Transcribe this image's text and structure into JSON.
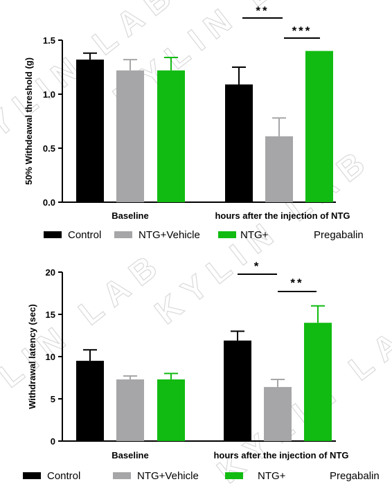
{
  "watermark": "KYLIN LAB",
  "chart_data": [
    {
      "type": "bar",
      "ylabel": "50% Withdeawal threshold (g)",
      "ylim": [
        0,
        1.5
      ],
      "yticks": [
        "0.0",
        "0.5",
        "1.0",
        "1.5"
      ],
      "categories": [
        "Baseline",
        "hours after the injection of NTG"
      ],
      "series": [
        {
          "name": "Control",
          "color": "#000000",
          "values": [
            1.32,
            1.09
          ],
          "errors": [
            0.06,
            0.16
          ]
        },
        {
          "name": "NTG+Vehicle",
          "color": "#a6a6a8",
          "values": [
            1.22,
            0.61
          ],
          "errors": [
            0.1,
            0.17
          ]
        },
        {
          "name": "NTG+",
          "color": "#11bb11",
          "values": [
            1.22,
            1.4
          ],
          "errors": [
            0.12,
            0.0
          ]
        }
      ],
      "legend_extra": "Pregabalin",
      "significance": [
        {
          "label": "**",
          "category": 1,
          "from": 0,
          "to": 1
        },
        {
          "label": "***",
          "category": 1,
          "from": 1,
          "to": 2
        }
      ]
    },
    {
      "type": "bar",
      "ylabel": "Withdrawal latency (sec)",
      "ylim": [
        0,
        20
      ],
      "yticks": [
        "0",
        "5",
        "10",
        "15",
        "20"
      ],
      "categories": [
        "Baseline",
        "hours after the injection of NTG"
      ],
      "series": [
        {
          "name": "Control",
          "color": "#000000",
          "values": [
            9.5,
            11.9
          ],
          "errors": [
            1.3,
            1.1
          ]
        },
        {
          "name": "NTG+Vehicle",
          "color": "#a6a6a8",
          "values": [
            7.3,
            6.4
          ],
          "errors": [
            0.4,
            0.9
          ]
        },
        {
          "name": "NTG+",
          "color": "#11bb11",
          "values": [
            7.3,
            14.0
          ],
          "errors": [
            0.7,
            2.0
          ]
        }
      ],
      "legend_extra": "Pregabalin",
      "significance": [
        {
          "label": "*",
          "category": 1,
          "from": 0,
          "to": 1
        },
        {
          "label": "**",
          "category": 1,
          "from": 1,
          "to": 2
        }
      ]
    }
  ]
}
